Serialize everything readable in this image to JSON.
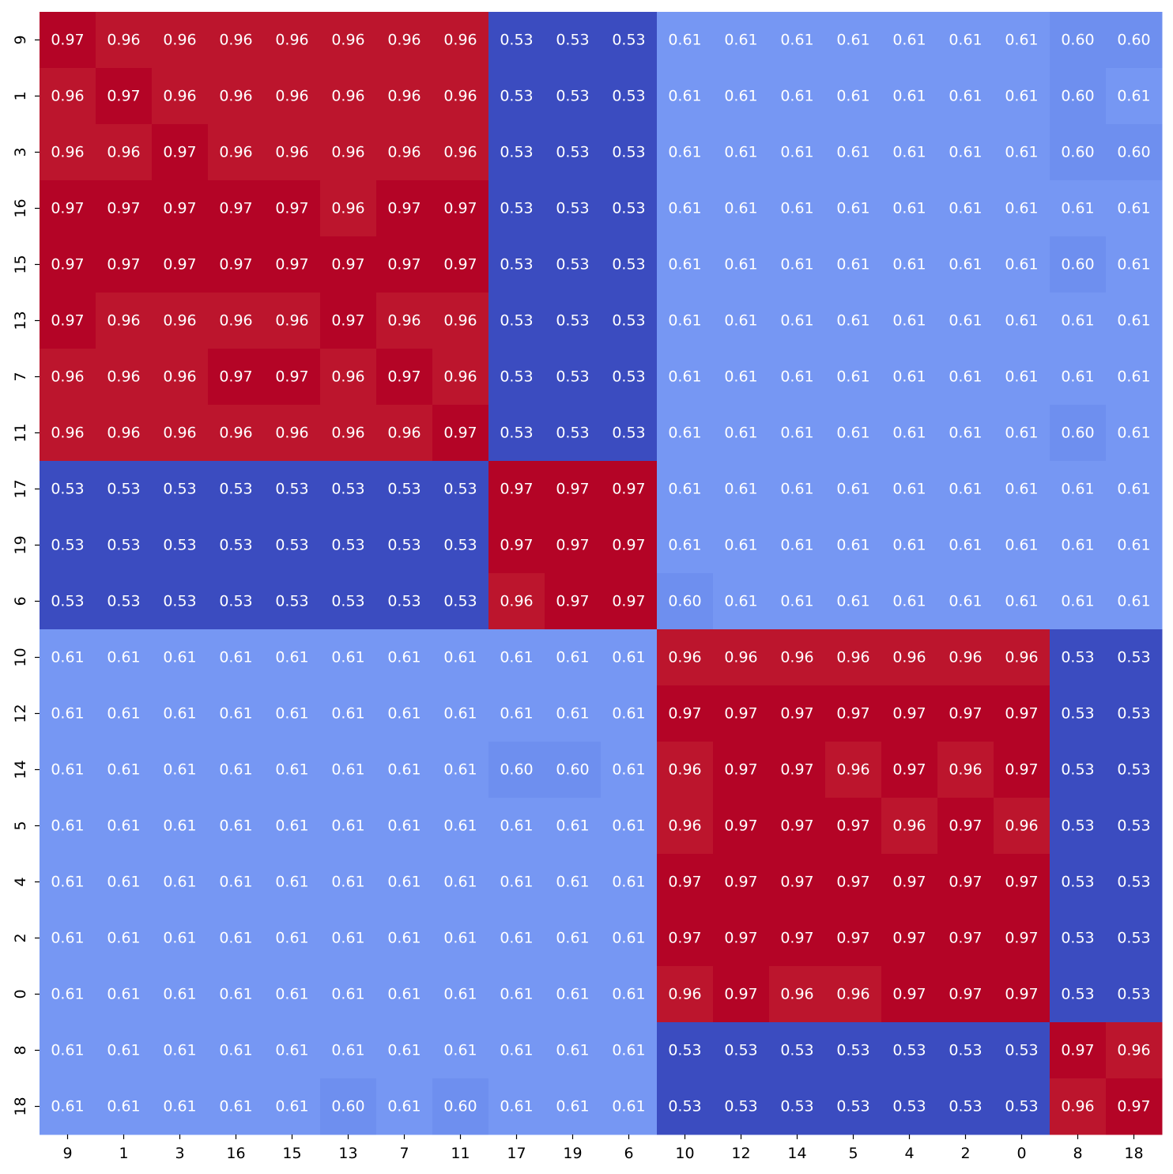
{
  "chart_data": {
    "type": "heatmap",
    "title": "",
    "xlabel": "",
    "ylabel": "",
    "colormap": "coolwarm",
    "value_range": [
      0.53,
      0.97
    ],
    "colorbar": false,
    "grid": false,
    "x_categories": [
      "9",
      "1",
      "3",
      "16",
      "15",
      "13",
      "7",
      "11",
      "17",
      "19",
      "6",
      "10",
      "12",
      "14",
      "5",
      "4",
      "2",
      "0",
      "8",
      "18"
    ],
    "y_categories": [
      "9",
      "1",
      "3",
      "16",
      "15",
      "13",
      "7",
      "11",
      "17",
      "19",
      "6",
      "10",
      "12",
      "14",
      "5",
      "4",
      "2",
      "0",
      "8",
      "18"
    ],
    "values": [
      [
        0.97,
        0.96,
        0.96,
        0.96,
        0.96,
        0.96,
        0.96,
        0.96,
        0.53,
        0.53,
        0.53,
        0.61,
        0.61,
        0.61,
        0.61,
        0.61,
        0.61,
        0.61,
        0.6,
        0.6
      ],
      [
        0.96,
        0.97,
        0.96,
        0.96,
        0.96,
        0.96,
        0.96,
        0.96,
        0.53,
        0.53,
        0.53,
        0.61,
        0.61,
        0.61,
        0.61,
        0.61,
        0.61,
        0.61,
        0.6,
        0.61
      ],
      [
        0.96,
        0.96,
        0.97,
        0.96,
        0.96,
        0.96,
        0.96,
        0.96,
        0.53,
        0.53,
        0.53,
        0.61,
        0.61,
        0.61,
        0.61,
        0.61,
        0.61,
        0.61,
        0.6,
        0.6
      ],
      [
        0.97,
        0.97,
        0.97,
        0.97,
        0.97,
        0.96,
        0.97,
        0.97,
        0.53,
        0.53,
        0.53,
        0.61,
        0.61,
        0.61,
        0.61,
        0.61,
        0.61,
        0.61,
        0.61,
        0.61
      ],
      [
        0.97,
        0.97,
        0.97,
        0.97,
        0.97,
        0.97,
        0.97,
        0.97,
        0.53,
        0.53,
        0.53,
        0.61,
        0.61,
        0.61,
        0.61,
        0.61,
        0.61,
        0.61,
        0.6,
        0.61
      ],
      [
        0.97,
        0.96,
        0.96,
        0.96,
        0.96,
        0.97,
        0.96,
        0.96,
        0.53,
        0.53,
        0.53,
        0.61,
        0.61,
        0.61,
        0.61,
        0.61,
        0.61,
        0.61,
        0.61,
        0.61
      ],
      [
        0.96,
        0.96,
        0.96,
        0.97,
        0.97,
        0.96,
        0.97,
        0.96,
        0.53,
        0.53,
        0.53,
        0.61,
        0.61,
        0.61,
        0.61,
        0.61,
        0.61,
        0.61,
        0.61,
        0.61
      ],
      [
        0.96,
        0.96,
        0.96,
        0.96,
        0.96,
        0.96,
        0.96,
        0.97,
        0.53,
        0.53,
        0.53,
        0.61,
        0.61,
        0.61,
        0.61,
        0.61,
        0.61,
        0.61,
        0.6,
        0.61
      ],
      [
        0.53,
        0.53,
        0.53,
        0.53,
        0.53,
        0.53,
        0.53,
        0.53,
        0.97,
        0.97,
        0.97,
        0.61,
        0.61,
        0.61,
        0.61,
        0.61,
        0.61,
        0.61,
        0.61,
        0.61
      ],
      [
        0.53,
        0.53,
        0.53,
        0.53,
        0.53,
        0.53,
        0.53,
        0.53,
        0.97,
        0.97,
        0.97,
        0.61,
        0.61,
        0.61,
        0.61,
        0.61,
        0.61,
        0.61,
        0.61,
        0.61
      ],
      [
        0.53,
        0.53,
        0.53,
        0.53,
        0.53,
        0.53,
        0.53,
        0.53,
        0.96,
        0.97,
        0.97,
        0.6,
        0.61,
        0.61,
        0.61,
        0.61,
        0.61,
        0.61,
        0.61,
        0.61
      ],
      [
        0.61,
        0.61,
        0.61,
        0.61,
        0.61,
        0.61,
        0.61,
        0.61,
        0.61,
        0.61,
        0.61,
        0.96,
        0.96,
        0.96,
        0.96,
        0.96,
        0.96,
        0.96,
        0.53,
        0.53
      ],
      [
        0.61,
        0.61,
        0.61,
        0.61,
        0.61,
        0.61,
        0.61,
        0.61,
        0.61,
        0.61,
        0.61,
        0.97,
        0.97,
        0.97,
        0.97,
        0.97,
        0.97,
        0.97,
        0.53,
        0.53
      ],
      [
        0.61,
        0.61,
        0.61,
        0.61,
        0.61,
        0.61,
        0.61,
        0.61,
        0.6,
        0.6,
        0.61,
        0.96,
        0.97,
        0.97,
        0.96,
        0.97,
        0.96,
        0.97,
        0.53,
        0.53
      ],
      [
        0.61,
        0.61,
        0.61,
        0.61,
        0.61,
        0.61,
        0.61,
        0.61,
        0.61,
        0.61,
        0.61,
        0.96,
        0.97,
        0.97,
        0.97,
        0.96,
        0.97,
        0.96,
        0.53,
        0.53
      ],
      [
        0.61,
        0.61,
        0.61,
        0.61,
        0.61,
        0.61,
        0.61,
        0.61,
        0.61,
        0.61,
        0.61,
        0.97,
        0.97,
        0.97,
        0.97,
        0.97,
        0.97,
        0.97,
        0.53,
        0.53
      ],
      [
        0.61,
        0.61,
        0.61,
        0.61,
        0.61,
        0.61,
        0.61,
        0.61,
        0.61,
        0.61,
        0.61,
        0.97,
        0.97,
        0.97,
        0.97,
        0.97,
        0.97,
        0.97,
        0.53,
        0.53
      ],
      [
        0.61,
        0.61,
        0.61,
        0.61,
        0.61,
        0.61,
        0.61,
        0.61,
        0.61,
        0.61,
        0.61,
        0.96,
        0.97,
        0.96,
        0.96,
        0.97,
        0.97,
        0.97,
        0.53,
        0.53
      ],
      [
        0.61,
        0.61,
        0.61,
        0.61,
        0.61,
        0.61,
        0.61,
        0.61,
        0.61,
        0.61,
        0.61,
        0.53,
        0.53,
        0.53,
        0.53,
        0.53,
        0.53,
        0.53,
        0.97,
        0.96
      ],
      [
        0.61,
        0.61,
        0.61,
        0.61,
        0.61,
        0.6,
        0.61,
        0.6,
        0.61,
        0.61,
        0.61,
        0.53,
        0.53,
        0.53,
        0.53,
        0.53,
        0.53,
        0.53,
        0.96,
        0.97
      ]
    ]
  }
}
